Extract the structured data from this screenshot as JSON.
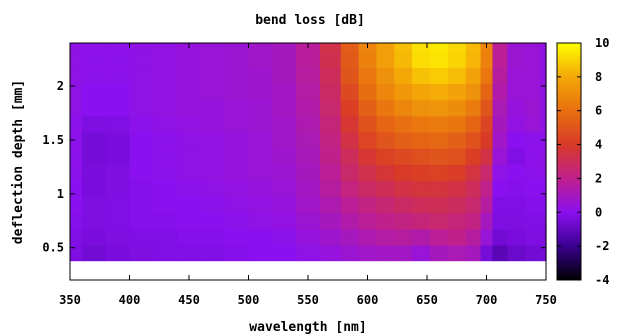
{
  "chart_data": {
    "type": "heatmap",
    "title": "bend loss [dB]",
    "xlabel": "wavelength [nm]",
    "ylabel": "deflection depth [mm]",
    "xlim": [
      350,
      750
    ],
    "ylim": [
      0.2,
      2.4
    ],
    "xticks": [
      350,
      400,
      450,
      500,
      550,
      600,
      650,
      700,
      750
    ],
    "yticks": [
      0.5,
      1,
      1.5,
      2
    ],
    "ytick_labels": [
      "0.5",
      "1",
      "1.5",
      "2"
    ],
    "colorbar": {
      "range": [
        -4,
        10
      ],
      "ticks": [
        -4,
        -2,
        0,
        2,
        4,
        6,
        8,
        10
      ],
      "stops": [
        {
          "v": -4,
          "color": "#000000"
        },
        {
          "v": -2,
          "color": "#3a0090"
        },
        {
          "v": 0,
          "color": "#8a10f0"
        },
        {
          "v": 2,
          "color": "#c0208c"
        },
        {
          "v": 4,
          "color": "#d83a28"
        },
        {
          "v": 6,
          "color": "#e87010"
        },
        {
          "v": 8,
          "color": "#f4a808"
        },
        {
          "v": 10,
          "color": "#ffff00"
        }
      ]
    },
    "data_y_range": [
      0.38,
      2.4
    ],
    "x": [
      350,
      370,
      390,
      410,
      430,
      450,
      470,
      490,
      510,
      530,
      550,
      570,
      585,
      600,
      615,
      630,
      645,
      660,
      675,
      690,
      700,
      710,
      725,
      740,
      750
    ],
    "y": [
      0.45,
      0.6,
      0.75,
      0.9,
      1.05,
      1.2,
      1.35,
      1.5,
      1.65,
      1.8,
      1.95,
      2.1,
      2.25,
      2.4
    ],
    "z": [
      [
        -0.3,
        -0.6,
        -0.4,
        -0.3,
        -0.2,
        -0.2,
        -0.2,
        -0.1,
        0,
        0,
        0.2,
        0.4,
        0.6,
        0.8,
        0.9,
        0.9,
        0.5,
        1.0,
        1.2,
        1.0,
        -0.5,
        -1.2,
        -0.8,
        -0.6,
        -0.5
      ],
      [
        -0.2,
        -0.4,
        -0.3,
        -0.2,
        -0.2,
        -0.1,
        -0.1,
        0,
        0,
        0.1,
        0.4,
        0.7,
        1.0,
        1.3,
        1.5,
        1.6,
        1.4,
        1.8,
        2.0,
        1.6,
        0.5,
        -0.6,
        -0.4,
        -0.3,
        -0.3
      ],
      [
        -0.1,
        -0.3,
        -0.2,
        -0.1,
        -0.1,
        0,
        0,
        0.1,
        0.2,
        0.3,
        0.6,
        1.0,
        1.4,
        1.8,
        2.0,
        2.2,
        2.4,
        2.6,
        2.4,
        2.2,
        1.0,
        -0.3,
        -0.3,
        -0.2,
        -0.2
      ],
      [
        0,
        -0.3,
        -0.2,
        -0.1,
        0,
        0,
        0.1,
        0.2,
        0.3,
        0.4,
        0.8,
        1.3,
        1.8,
        2.2,
        2.5,
        2.8,
        3.0,
        3.1,
        2.9,
        2.6,
        1.6,
        -0.2,
        -0.2,
        -0.1,
        -0.1
      ],
      [
        0,
        -0.4,
        -0.3,
        -0.1,
        0,
        0.1,
        0.2,
        0.3,
        0.4,
        0.5,
        0.9,
        1.6,
        2.3,
        2.8,
        3.1,
        3.4,
        3.6,
        3.6,
        3.4,
        3.0,
        2.0,
        0.0,
        -0.1,
        0,
        0
      ],
      [
        0.1,
        -0.4,
        -0.3,
        0,
        0.1,
        0.2,
        0.3,
        0.4,
        0.5,
        0.6,
        1.0,
        1.8,
        2.7,
        3.3,
        3.7,
        4.0,
        4.2,
        4.3,
        4.1,
        3.5,
        2.6,
        0.2,
        0,
        0.1,
        0.1
      ],
      [
        0.1,
        -0.5,
        -0.4,
        0,
        0.1,
        0.2,
        0.3,
        0.4,
        0.5,
        0.7,
        1.1,
        2.0,
        3.0,
        3.8,
        4.3,
        4.6,
        4.8,
        5.0,
        4.8,
        4.2,
        3.4,
        0.5,
        -0.2,
        0.1,
        0.2
      ],
      [
        0.1,
        -0.5,
        -0.4,
        0,
        0.1,
        0.2,
        0.3,
        0.4,
        0.5,
        0.8,
        1.2,
        2.2,
        3.4,
        4.4,
        5.0,
        5.4,
        5.6,
        5.7,
        5.4,
        4.9,
        4.0,
        0.8,
        0,
        0.1,
        0.1
      ],
      [
        0.1,
        -0.3,
        -0.2,
        0.1,
        0.2,
        0.3,
        0.4,
        0.5,
        0.6,
        0.8,
        1.3,
        2.4,
        3.8,
        4.9,
        5.6,
        6.0,
        6.3,
        6.4,
        6.2,
        5.6,
        4.4,
        1.0,
        0.3,
        0.5,
        0.3
      ],
      [
        0.2,
        0,
        0,
        0.2,
        0.3,
        0.4,
        0.4,
        0.5,
        0.6,
        0.9,
        1.4,
        2.6,
        4.2,
        5.4,
        6.2,
        6.8,
        7.2,
        7.3,
        7.0,
        6.4,
        5.0,
        1.2,
        0.4,
        0.6,
        0.3
      ],
      [
        0.2,
        0,
        0,
        0.2,
        0.3,
        0.4,
        0.5,
        0.6,
        0.7,
        0.9,
        1.5,
        2.8,
        4.6,
        5.9,
        6.8,
        7.4,
        7.9,
        8.1,
        7.8,
        7.2,
        5.6,
        1.4,
        0.5,
        0.5,
        0.3
      ],
      [
        0.2,
        0.1,
        0.1,
        0.2,
        0.3,
        0.4,
        0.5,
        0.6,
        0.7,
        1.0,
        1.6,
        3.0,
        5.0,
        6.3,
        7.2,
        8.0,
        8.6,
        8.8,
        8.5,
        7.8,
        6.2,
        1.6,
        0.5,
        0.5,
        0.3
      ],
      [
        0.2,
        0.1,
        0.1,
        0.2,
        0.3,
        0.4,
        0.5,
        0.6,
        0.8,
        1.0,
        1.7,
        3.2,
        5.2,
        6.6,
        7.6,
        8.4,
        9.2,
        9.4,
        9.0,
        8.3,
        6.6,
        1.8,
        0.6,
        0.5,
        0.3
      ],
      [
        0.2,
        0.1,
        0.1,
        0.2,
        0.3,
        0.4,
        0.5,
        0.6,
        0.8,
        1.0,
        1.7,
        3.3,
        5.3,
        6.7,
        7.7,
        8.5,
        9.3,
        9.5,
        9.1,
        8.4,
        6.7,
        1.8,
        0.6,
        0.5,
        0.3
      ]
    ]
  }
}
